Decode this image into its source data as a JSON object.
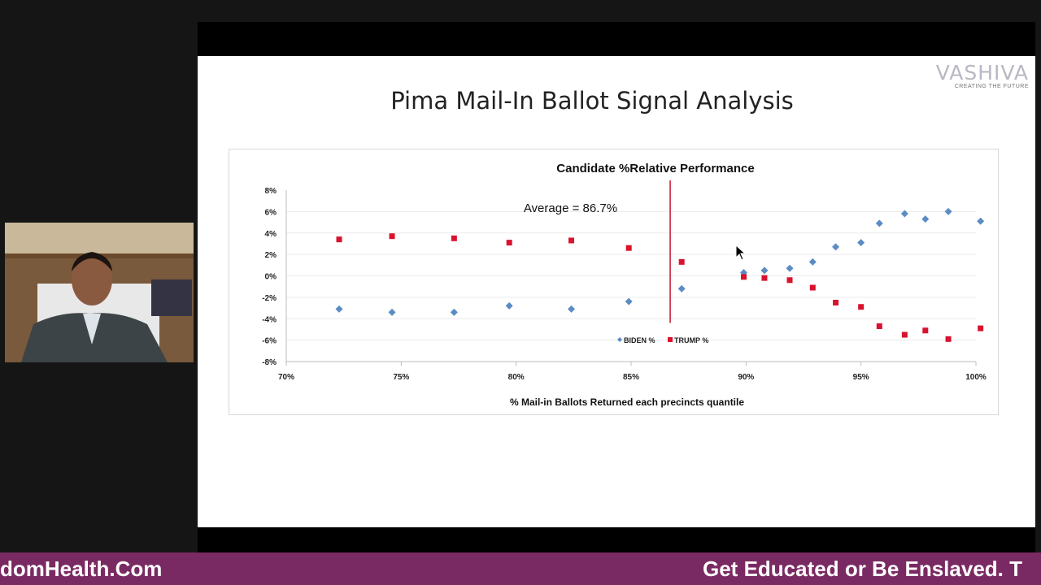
{
  "slide": {
    "title": "Pima Mail-In Ballot Signal Analysis",
    "logo_text": "VASHIVA",
    "logo_tagline": "CREATING THE FUTURE"
  },
  "banner": {
    "left_text": "domHealth.Com",
    "right_text": "Get Educated or Be Enslaved. T",
    "color": "#7a2a62"
  },
  "chart_data": {
    "type": "scatter",
    "title": "Candidate %Relative Performance",
    "xlabel": "% Mail-in Ballots Returned each precincts quantile",
    "ylabel": "",
    "xlim": [
      70,
      100
    ],
    "ylim": [
      -8,
      8
    ],
    "x_ticks": [
      "70%",
      "75%",
      "80%",
      "85%",
      "90%",
      "95%",
      "100%"
    ],
    "y_ticks": [
      "8%",
      "6%",
      "4%",
      "2%",
      "0%",
      "-2%",
      "-4%",
      "-6%",
      "-8%"
    ],
    "grid": "horizontal",
    "legend_placement": "bottom-center",
    "annotation": {
      "text": "Average = 86.7%",
      "x": 86.7
    },
    "x": [
      72.3,
      74.6,
      77.3,
      79.7,
      82.4,
      84.9,
      87.2,
      89.9,
      90.8,
      91.9,
      92.9,
      93.9,
      95.0,
      95.8,
      96.9,
      97.8,
      98.8,
      100.2
    ],
    "series": [
      {
        "name": "BIDEN %",
        "color": "#5b8cc4",
        "marker": "diamond",
        "values": [
          -3.1,
          -3.4,
          -3.4,
          -2.8,
          -3.1,
          -2.4,
          -1.2,
          0.3,
          0.5,
          0.7,
          1.3,
          2.7,
          3.1,
          4.9,
          5.8,
          5.3,
          6.0,
          5.1
        ]
      },
      {
        "name": "TRUMP %",
        "color": "#d8132f",
        "marker": "square",
        "values": [
          3.4,
          3.7,
          3.5,
          3.1,
          3.3,
          2.6,
          1.3,
          -0.1,
          -0.2,
          -0.4,
          -1.1,
          -2.5,
          -2.9,
          -4.7,
          -5.5,
          -5.1,
          -5.9,
          -4.9
        ]
      }
    ]
  }
}
